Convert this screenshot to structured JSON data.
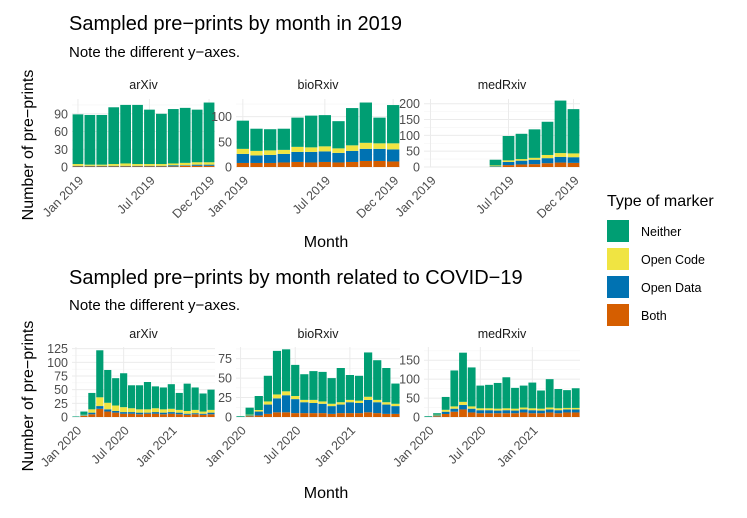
{
  "legend": {
    "title": "Type of marker",
    "items": [
      {
        "label": "Neither",
        "color": "#009E73"
      },
      {
        "label": "Open Code",
        "color": "#F0E442"
      },
      {
        "label": "Open Data",
        "color": "#0072B2"
      },
      {
        "label": "Both",
        "color": "#D55E00"
      }
    ]
  },
  "chart_data": [
    {
      "type": "bar",
      "stacked": true,
      "title": "Sampled pre−prints by month in 2019",
      "subtitle": "Note the different y−axes.",
      "xlabel": "Month",
      "ylabel": "Number of pre−prints",
      "stack_order": [
        "Both",
        "Open Data",
        "Open Code",
        "Neither"
      ],
      "facets": [
        {
          "name": "arXiv",
          "categories": [
            "2019-01",
            "2019-02",
            "2019-03",
            "2019-04",
            "2019-05",
            "2019-06",
            "2019-07",
            "2019-08",
            "2019-09",
            "2019-10",
            "2019-11",
            "2019-12"
          ],
          "xticks": [
            "Jan 2019",
            "Jul 2019",
            "Dec 2019"
          ],
          "xtick_index": [
            0,
            6,
            11
          ],
          "ylim": [
            0,
            115
          ],
          "yticks": [
            0,
            30,
            60,
            90
          ],
          "series": {
            "Both": [
              1,
              1,
              1,
              1,
              1,
              1,
              1,
              1,
              1,
              2,
              2,
              2
            ],
            "Open Data": [
              1,
              1,
              1,
              1,
              1,
              1,
              1,
              1,
              2,
              1,
              2,
              2
            ],
            "Open Code": [
              3,
              2,
              2,
              3,
              4,
              3,
              3,
              3,
              3,
              4,
              4,
              4
            ],
            "Neither": [
              84,
              84,
              84,
              96,
              99,
              100,
              92,
              85,
              92,
              93,
              89,
              101
            ]
          }
        },
        {
          "name": "bioRxiv",
          "categories": [
            "2019-01",
            "2019-02",
            "2019-03",
            "2019-04",
            "2019-05",
            "2019-06",
            "2019-07",
            "2019-08",
            "2019-09",
            "2019-10",
            "2019-11",
            "2019-12"
          ],
          "xticks": [
            "Jan 2019",
            "Jul 2019",
            "Dec 2019"
          ],
          "xtick_index": [
            0,
            6,
            11
          ],
          "ylim": [
            0,
            135
          ],
          "yticks": [
            0,
            50,
            100
          ],
          "series": {
            "Both": [
              8,
              8,
              8,
              9,
              10,
              9,
              10,
              9,
              10,
              12,
              12,
              11
            ],
            "Open Data": [
              18,
              15,
              16,
              17,
              20,
              21,
              21,
              19,
              22,
              24,
              24,
              24
            ],
            "Open Code": [
              10,
              9,
              9,
              8,
              10,
              9,
              10,
              9,
              11,
              12,
              11,
              12
            ],
            "Neither": [
              56,
              44,
              42,
              42,
              58,
              63,
              62,
              54,
              74,
              80,
              51,
              76
            ]
          }
        },
        {
          "name": "medRxiv",
          "categories": [
            "2019-01",
            "2019-02",
            "2019-03",
            "2019-04",
            "2019-05",
            "2019-06",
            "2019-07",
            "2019-08",
            "2019-09",
            "2019-10",
            "2019-11",
            "2019-12"
          ],
          "xticks": [
            "Jan 2019",
            "Jul 2019",
            "Dec 2019"
          ],
          "xtick_index": [
            0,
            6,
            11
          ],
          "ylim": [
            0,
            215
          ],
          "yticks": [
            0,
            50,
            100,
            150,
            200
          ],
          "series": {
            "Both": [
              0,
              0,
              0,
              0,
              0,
              0,
              6,
              8,
              9,
              12,
              14,
              13
            ],
            "Open Data": [
              0,
              0,
              0,
              0,
              0,
              2,
              10,
              12,
              14,
              16,
              18,
              18
            ],
            "Open Code": [
              0,
              0,
              0,
              0,
              0,
              3,
              5,
              5,
              6,
              10,
              12,
              12
            ],
            "Neither": [
              0,
              0,
              0,
              0,
              0,
              18,
              77,
              80,
              90,
              105,
              166,
              140
            ]
          }
        }
      ]
    },
    {
      "type": "bar",
      "stacked": true,
      "title": "Sampled pre−prints by month related to COVID−19",
      "subtitle": "Note the different y−axes.",
      "xlabel": "Month",
      "ylabel": "Number of pre−prints",
      "stack_order": [
        "Both",
        "Open Data",
        "Open Code",
        "Neither"
      ],
      "facets": [
        {
          "name": "arXiv",
          "categories": [
            "2020-01",
            "2020-02",
            "2020-03",
            "2020-04",
            "2020-05",
            "2020-06",
            "2020-07",
            "2020-08",
            "2020-09",
            "2020-10",
            "2020-11",
            "2020-12",
            "2021-01",
            "2021-02",
            "2021-03",
            "2021-04",
            "2021-05",
            "2021-06"
          ],
          "xticks": [
            "Jan 2020",
            "Jul 2020",
            "Jan 2021"
          ],
          "xtick_index": [
            0,
            6,
            12
          ],
          "ylim": [
            0,
            128
          ],
          "yticks": [
            0,
            25,
            50,
            75,
            100,
            125
          ],
          "series": {
            "Both": [
              0,
              2,
              5,
              15,
              10,
              8,
              6,
              6,
              5,
              6,
              6,
              5,
              6,
              5,
              4,
              5,
              4,
              5
            ],
            "Open Data": [
              0,
              1,
              3,
              5,
              4,
              3,
              3,
              3,
              3,
              2,
              3,
              3,
              3,
              3,
              2,
              2,
              2,
              3
            ],
            "Open Code": [
              0,
              1,
              6,
              16,
              12,
              10,
              9,
              7,
              6,
              6,
              7,
              6,
              6,
              5,
              5,
              6,
              4,
              5
            ],
            "Neither": [
              1,
              6,
              30,
              86,
              60,
              50,
              62,
              42,
              44,
              50,
              40,
              40,
              45,
              31,
              50,
              41,
              33,
              37
            ]
          }
        },
        {
          "name": "bioRxiv",
          "categories": [
            "2020-01",
            "2020-02",
            "2020-03",
            "2020-04",
            "2020-05",
            "2020-06",
            "2020-07",
            "2020-08",
            "2020-09",
            "2020-10",
            "2020-11",
            "2020-12",
            "2021-01",
            "2021-02",
            "2021-03",
            "2021-04",
            "2021-05",
            "2021-06"
          ],
          "xticks": [
            "Jan 2020",
            "Jul 2020",
            "Jan 2021"
          ],
          "xtick_index": [
            0,
            6,
            12
          ],
          "ylim": [
            0,
            90
          ],
          "yticks": [
            0,
            25,
            50,
            75
          ],
          "series": {
            "Both": [
              0,
              1,
              2,
              4,
              6,
              6,
              5,
              5,
              5,
              5,
              4,
              5,
              5,
              5,
              6,
              5,
              4,
              4
            ],
            "Open Data": [
              0,
              1,
              5,
              12,
              18,
              22,
              18,
              14,
              13,
              12,
              10,
              11,
              14,
              13,
              16,
              14,
              12,
              10
            ],
            "Open Code": [
              0,
              1,
              2,
              4,
              5,
              5,
              4,
              3,
              4,
              3,
              3,
              3,
              3,
              3,
              4,
              3,
              3,
              3
            ],
            "Neither": [
              1,
              9,
              18,
              33,
              56,
              54,
              40,
              33,
              37,
              38,
              33,
              44,
              32,
              32,
              57,
              51,
              44,
              26
            ]
          }
        },
        {
          "name": "medRxiv",
          "categories": [
            "2020-01",
            "2020-02",
            "2020-03",
            "2020-04",
            "2020-05",
            "2020-06",
            "2020-07",
            "2020-08",
            "2020-09",
            "2020-10",
            "2020-11",
            "2020-12",
            "2021-01",
            "2021-02",
            "2021-03",
            "2021-04",
            "2021-05",
            "2021-06"
          ],
          "xticks": [
            "Jan 2020",
            "Jul 2020",
            "Jan 2021"
          ],
          "xtick_index": [
            0,
            6,
            12
          ],
          "ylim": [
            0,
            185
          ],
          "yticks": [
            0,
            50,
            100,
            150
          ],
          "series": {
            "Both": [
              0,
              2,
              8,
              14,
              20,
              12,
              10,
              10,
              10,
              10,
              10,
              12,
              10,
              10,
              12,
              10,
              12,
              12
            ],
            "Open Data": [
              0,
              2,
              6,
              8,
              12,
              10,
              8,
              8,
              7,
              8,
              7,
              8,
              8,
              7,
              8,
              8,
              8,
              8
            ],
            "Open Code": [
              0,
              2,
              5,
              6,
              8,
              6,
              5,
              5,
              5,
              5,
              5,
              5,
              5,
              5,
              5,
              5,
              4,
              4
            ],
            "Neither": [
              2,
              4,
              34,
              95,
              130,
              103,
              60,
              62,
              68,
              82,
              55,
              58,
              68,
              48,
              75,
              51,
              47,
              52
            ]
          }
        }
      ]
    }
  ]
}
